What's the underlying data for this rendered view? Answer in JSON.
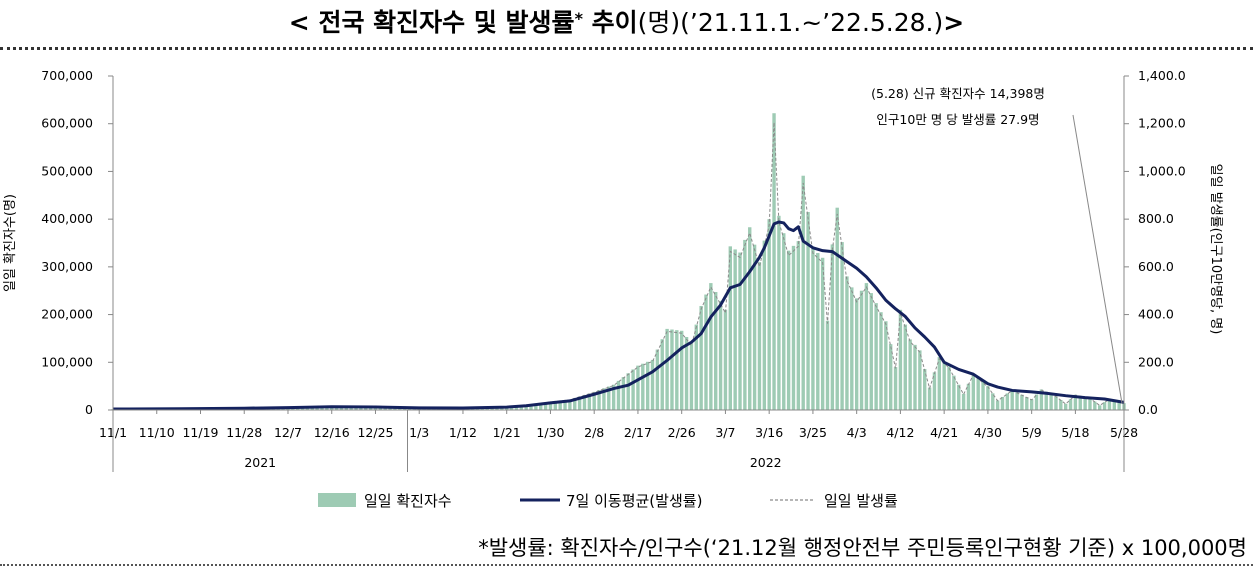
{
  "header": {
    "title_bold": "< 전국 확진자수 및 발생률",
    "title_star": "*",
    "title_bold2": " 추이",
    "title_normal": "(명)(’21.11.1.~’22.5.28.)",
    "title_end": ">"
  },
  "footnote": "*발생률: 확진자수/인구수(‘21.12월 행정안전부 주민등록인구현황 기준) x 100,000명",
  "chart_data": {
    "type": "bar",
    "title": "< 전국 확진자수 및 발생률* 추이(명)(’21.11.1.~’22.5.28.)>",
    "ylabel": "일일 확진자수(명)",
    "y2label": "일일 발생률(인구10만명당, 명)",
    "ylim": [
      0,
      700000
    ],
    "y2lim": [
      0,
      1400
    ],
    "yticks": [
      "0",
      "100,000",
      "200,000",
      "300,000",
      "400,000",
      "500,000",
      "600,000",
      "700,000"
    ],
    "y2ticks": [
      "0.0",
      "200.0",
      "400.0",
      "600.0",
      "800.0",
      "1,000.0",
      "1,200.0",
      "1,400.0"
    ],
    "xrange": [
      "2021-11-01",
      "2022-05-28"
    ],
    "xticks": [
      {
        "date": "2021-11-01",
        "label": "11/1"
      },
      {
        "date": "2021-11-10",
        "label": "11/10"
      },
      {
        "date": "2021-11-19",
        "label": "11/19"
      },
      {
        "date": "2021-11-28",
        "label": "11/28"
      },
      {
        "date": "2021-12-07",
        "label": "12/7"
      },
      {
        "date": "2021-12-16",
        "label": "12/16"
      },
      {
        "date": "2021-12-25",
        "label": "12/25"
      },
      {
        "date": "2022-01-03",
        "label": "1/3"
      },
      {
        "date": "2022-01-12",
        "label": "1/12"
      },
      {
        "date": "2022-01-21",
        "label": "1/21"
      },
      {
        "date": "2022-01-30",
        "label": "1/30"
      },
      {
        "date": "2022-02-08",
        "label": "2/8"
      },
      {
        "date": "2022-02-17",
        "label": "2/17"
      },
      {
        "date": "2022-02-26",
        "label": "2/26"
      },
      {
        "date": "2022-03-07",
        "label": "3/7"
      },
      {
        "date": "2022-03-16",
        "label": "3/16"
      },
      {
        "date": "2022-03-25",
        "label": "3/25"
      },
      {
        "date": "2022-04-03",
        "label": "4/3"
      },
      {
        "date": "2022-04-12",
        "label": "4/12"
      },
      {
        "date": "2022-04-21",
        "label": "4/21"
      },
      {
        "date": "2022-04-30",
        "label": "4/30"
      },
      {
        "date": "2022-05-09",
        "label": "5/9"
      },
      {
        "date": "2022-05-18",
        "label": "5/18"
      },
      {
        "date": "2022-05-28",
        "label": "5/28"
      }
    ],
    "years": [
      {
        "label": "2021",
        "from": "2021-11-01",
        "to": "2021-12-31"
      },
      {
        "label": "2022",
        "from": "2022-01-01",
        "to": "2022-05-28"
      }
    ],
    "anchors_daily": [
      [
        "2021-11-01",
        1700
      ],
      [
        "2021-11-15",
        2400
      ],
      [
        "2021-11-28",
        3900
      ],
      [
        "2021-12-07",
        4900
      ],
      [
        "2021-12-16",
        7400
      ],
      [
        "2021-12-25",
        6200
      ],
      [
        "2022-01-03",
        4000
      ],
      [
        "2022-01-12",
        4400
      ],
      [
        "2022-01-21",
        7000
      ],
      [
        "2022-01-25",
        8500
      ],
      [
        "2022-01-30",
        17500
      ],
      [
        "2022-02-03",
        22000
      ],
      [
        "2022-02-08",
        38000
      ],
      [
        "2022-02-12",
        53000
      ],
      [
        "2022-02-17",
        93000
      ],
      [
        "2022-02-20",
        105000
      ],
      [
        "2022-02-23",
        170000
      ],
      [
        "2022-02-26",
        166000
      ],
      [
        "2022-02-28",
        140000
      ],
      [
        "2022-03-02",
        218000
      ],
      [
        "2022-03-04",
        266000
      ],
      [
        "2022-03-07",
        210000
      ],
      [
        "2022-03-08",
        343000
      ],
      [
        "2022-03-10",
        330000
      ],
      [
        "2022-03-12",
        383000
      ],
      [
        "2022-03-14",
        310000
      ],
      [
        "2022-03-16",
        400000
      ],
      [
        "2022-03-17",
        622000
      ],
      [
        "2022-03-18",
        407000
      ],
      [
        "2022-03-20",
        334000
      ],
      [
        "2022-03-22",
        354000
      ],
      [
        "2022-03-23",
        491000
      ],
      [
        "2022-03-25",
        339000
      ],
      [
        "2022-03-27",
        319000
      ],
      [
        "2022-03-28",
        187000
      ],
      [
        "2022-03-29",
        347000
      ],
      [
        "2022-03-30",
        424000
      ],
      [
        "2022-04-01",
        280000
      ],
      [
        "2022-04-03",
        234000
      ],
      [
        "2022-04-05",
        266000
      ],
      [
        "2022-04-07",
        224000
      ],
      [
        "2022-04-09",
        186000
      ],
      [
        "2022-04-11",
        90000
      ],
      [
        "2022-04-12",
        210000
      ],
      [
        "2022-04-14",
        148000
      ],
      [
        "2022-04-16",
        125000
      ],
      [
        "2022-04-18",
        47000
      ],
      [
        "2022-04-20",
        111000
      ],
      [
        "2022-04-22",
        91000
      ],
      [
        "2022-04-25",
        34000
      ],
      [
        "2022-04-27",
        76000
      ],
      [
        "2022-04-30",
        50000
      ],
      [
        "2022-05-02",
        20000
      ],
      [
        "2022-05-05",
        42000
      ],
      [
        "2022-05-09",
        22000
      ],
      [
        "2022-05-11",
        43000
      ],
      [
        "2022-05-14",
        29000
      ],
      [
        "2022-05-16",
        13000
      ],
      [
        "2022-05-18",
        32000
      ],
      [
        "2022-05-21",
        25000
      ],
      [
        "2022-05-23",
        9900
      ],
      [
        "2022-05-25",
        23000
      ],
      [
        "2022-05-28",
        14398
      ]
    ],
    "series": [
      {
        "name": "일일 확진자수",
        "kind": "bar",
        "color": "#9ecbb4"
      },
      {
        "name": "7일 이동평균(발생률)",
        "kind": "line",
        "color": "#14225e",
        "points": [
          [
            "2021-11-01",
            4.0
          ],
          [
            "2021-11-15",
            5.0
          ],
          [
            "2021-11-28",
            7.5
          ],
          [
            "2021-12-07",
            10.0
          ],
          [
            "2021-12-16",
            13.5
          ],
          [
            "2021-12-25",
            12.5
          ],
          [
            "2022-01-03",
            9.0
          ],
          [
            "2022-01-12",
            8.5
          ],
          [
            "2022-01-21",
            12.0
          ],
          [
            "2022-01-25",
            18.0
          ],
          [
            "2022-01-30",
            30.0
          ],
          [
            "2022-02-03",
            38.0
          ],
          [
            "2022-02-08",
            66.0
          ],
          [
            "2022-02-12",
            90.0
          ],
          [
            "2022-02-15",
            104.0
          ],
          [
            "2022-02-20",
            160.0
          ],
          [
            "2022-02-23",
            208.0
          ],
          [
            "2022-02-26",
            260.0
          ],
          [
            "2022-02-28",
            284.0
          ],
          [
            "2022-03-02",
            320.0
          ],
          [
            "2022-03-04",
            390.0
          ],
          [
            "2022-03-06",
            440.0
          ],
          [
            "2022-03-08",
            512.0
          ],
          [
            "2022-03-10",
            526.0
          ],
          [
            "2022-03-12",
            580.0
          ],
          [
            "2022-03-14",
            640.0
          ],
          [
            "2022-03-15",
            680.0
          ],
          [
            "2022-03-16",
            730.0
          ],
          [
            "2022-03-17",
            780.0
          ],
          [
            "2022-03-18",
            788.0
          ],
          [
            "2022-03-19",
            784.0
          ],
          [
            "2022-03-20",
            760.0
          ],
          [
            "2022-03-21",
            752.0
          ],
          [
            "2022-03-22",
            768.0
          ],
          [
            "2022-03-23",
            708.0
          ],
          [
            "2022-03-24",
            694.0
          ],
          [
            "2022-03-25",
            680.0
          ],
          [
            "2022-03-27",
            668.0
          ],
          [
            "2022-03-29",
            664.0
          ],
          [
            "2022-04-01",
            622.0
          ],
          [
            "2022-04-03",
            594.0
          ],
          [
            "2022-04-05",
            558.0
          ],
          [
            "2022-04-07",
            512.0
          ],
          [
            "2022-04-09",
            460.0
          ],
          [
            "2022-04-11",
            424.0
          ],
          [
            "2022-04-13",
            392.0
          ],
          [
            "2022-04-15",
            344.0
          ],
          [
            "2022-04-17",
            306.0
          ],
          [
            "2022-04-19",
            264.0
          ],
          [
            "2022-04-21",
            200.0
          ],
          [
            "2022-04-24",
            170.0
          ],
          [
            "2022-04-27",
            150.0
          ],
          [
            "2022-04-30",
            110.0
          ],
          [
            "2022-05-02",
            96.0
          ],
          [
            "2022-05-05",
            82.0
          ],
          [
            "2022-05-09",
            76.0
          ],
          [
            "2022-05-12",
            70.0
          ],
          [
            "2022-05-16",
            60.0
          ],
          [
            "2022-05-20",
            52.0
          ],
          [
            "2022-05-24",
            46.0
          ],
          [
            "2022-05-28",
            32.0
          ]
        ]
      },
      {
        "name": "일일 발생률",
        "kind": "dashed-line",
        "color": "#8a8a8a"
      }
    ],
    "annotation": {
      "line1": "(5.28) 신규 확진자수 14,398명",
      "line2": "인구10만 명 당 발생률 27.9명",
      "date": "2022-05-28",
      "value": 27.9
    },
    "legend_placement": "bottom",
    "grid": false
  }
}
